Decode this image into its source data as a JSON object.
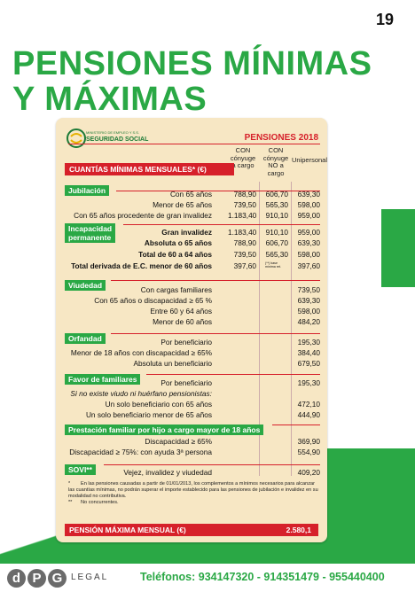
{
  "page_number": "19",
  "title_line1": "PENSIONES MÍNIMAS",
  "title_line2": "Y MÁXIMAS",
  "logo": {
    "small_text": "MINISTERIO DE EMPLEO Y S.S.",
    "name": "SEGURIDAD SOCIAL"
  },
  "table": {
    "year_label": "PENSIONES 2018",
    "header_bar": "CUANTÍAS MÍNIMAS MENSUALES* (€)",
    "col1": "CON cónyuge a cargo",
    "col2": "CON cónyuge NO a cargo",
    "col3": "Unipersonal",
    "sections": {
      "jubilacion": {
        "label": "Jubilación",
        "rows": [
          {
            "label": "Con 65 años",
            "v1": "788,90",
            "v2": "606,70",
            "v3": "639,30"
          },
          {
            "label": "Menor de 65 años",
            "v1": "739,50",
            "v2": "565,30",
            "v3": "598,00"
          },
          {
            "label": "Con 65 años procedente de gran invalidez",
            "v1": "1.183,40",
            "v2": "910,10",
            "v3": "959,00"
          }
        ]
      },
      "incapacidad": {
        "label_line1": "Incapacidad",
        "label_line2": "permanente",
        "rows": [
          {
            "label": "Gran invalidez",
            "v1": "1.183,40",
            "v2": "910,10",
            "v3": "959,00"
          },
          {
            "label": "Absoluta o 65 años",
            "v1": "788,90",
            "v2": "606,70",
            "v3": "639,30"
          },
          {
            "label": "Total de 60 a 64 años",
            "v1": "739,50",
            "v2": "565,30",
            "v3": "598,00"
          },
          {
            "label": "Total derivada de E.C. menor de 60 años",
            "v1": "397,60",
            "v2": "(**) base mínima ret.",
            "v3": "397,60"
          }
        ]
      },
      "viudedad": {
        "label": "Viudedad",
        "rows": [
          {
            "label": "Con cargas familiares",
            "v": "739,50"
          },
          {
            "label": "Con 65 años o discapacidad ≥ 65 %",
            "v": "639,30"
          },
          {
            "label": "Entre 60 y 64 años",
            "v": "598,00"
          },
          {
            "label": "Menor de 60 años",
            "v": "484,20"
          }
        ]
      },
      "orfandad": {
        "label": "Orfandad",
        "rows": [
          {
            "label": "Por beneficiario",
            "v": "195,30"
          },
          {
            "label": "Menor de 18 años con discapacidad ≥ 65%",
            "v": "384,40"
          },
          {
            "label": "Absoluta un beneficiario",
            "v": "679,50"
          }
        ]
      },
      "familiares": {
        "label": "Favor de familiares",
        "rows": [
          {
            "label": "Por beneficiario",
            "v": "195,30"
          },
          {
            "label": "Si no existe viudo ni huérfano pensionistas:",
            "v": ""
          },
          {
            "label": "Un solo beneficiario con 65 años",
            "v": "472,10"
          },
          {
            "label": "Un solo beneficiario menor de 65 años",
            "v": "444,90"
          }
        ]
      },
      "prestacion": {
        "label": "Prestación familiar por hijo a cargo mayor de 18 años",
        "rows": [
          {
            "label": "Discapacidad ≥ 65%",
            "v": "369,90"
          },
          {
            "label": "Discapacidad ≥ 75%: con ayuda 3ª persona",
            "v": "554,90"
          }
        ]
      },
      "sovi": {
        "label": "SOVI**",
        "rows": [
          {
            "label": "Vejez, invalidez y viudedad",
            "v": "409,20"
          }
        ]
      }
    },
    "footnote1_mark": "*",
    "footnote1": "En las pensiones causadas a partir de 01/01/2013, los complementos a mínimos necesarios para alcanzar las cuantías mínimas, no podrán superar el importe establecido para las pensiones de jubilación e invalidez en su modalidad no contributiva.",
    "footnote2_mark": "**",
    "footnote2": "No concurrentes.",
    "max_label": "PENSIÓN MÁXIMA MENSUAL (€)",
    "max_value": "2.580,1"
  },
  "footer": {
    "logo_letters": [
      "d",
      "P",
      "G"
    ],
    "legal": "LEGAL",
    "phones": "Teléfonos: 934147320 - 914351479 - 955440400"
  },
  "colors": {
    "green": "#2aa845",
    "red": "#d6202a",
    "card": "#f7e7c4"
  }
}
